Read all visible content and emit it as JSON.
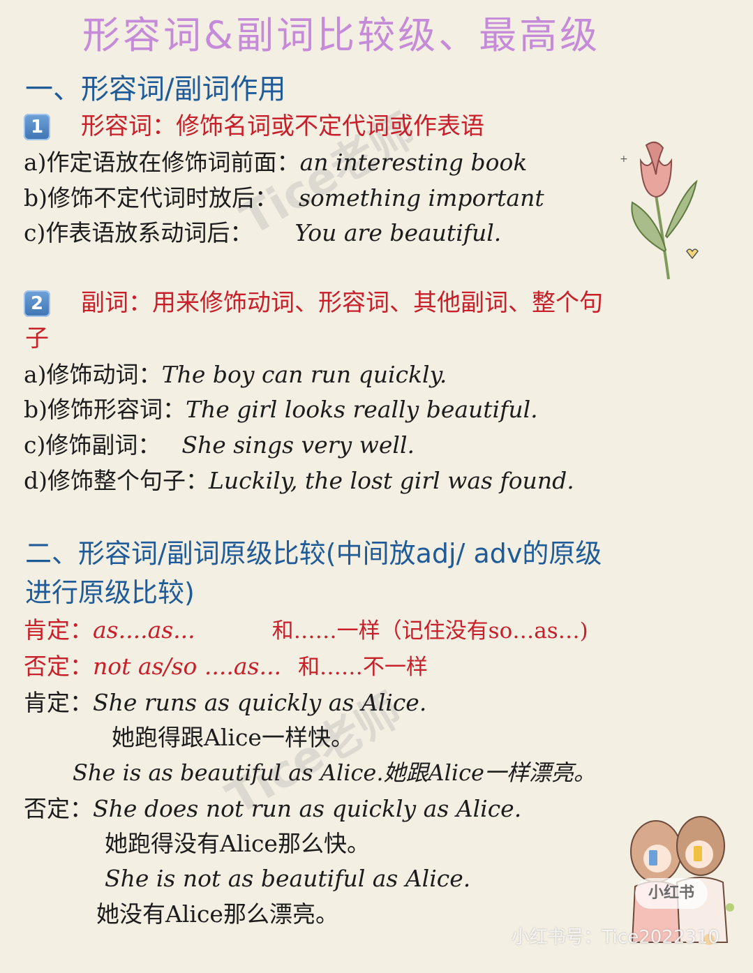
{
  "title": "形容词&副词比较级、最高级",
  "section1": {
    "heading": "一、形容词/副词作用",
    "item1": {
      "badge": "1",
      "heading": "形容词：修饰名词或不定代词或作表语",
      "lines": [
        {
          "cn": "a)作定语放在修饰词前面：",
          "en": "an interesting book"
        },
        {
          "cn": "b)修饰不定代词时放后：",
          "en": "something important"
        },
        {
          "cn": "c)作表语放系动词后：",
          "en": "You are beautiful."
        }
      ]
    },
    "item2": {
      "badge": "2",
      "heading": "副词：用来修饰动词、形容词、其他副词、整个句",
      "heading_cont": "子",
      "lines": [
        {
          "cn": "a)修饰动词：",
          "en": "The boy can run quickly."
        },
        {
          "cn": "b)修饰形容词：",
          "en": "The girl looks really beautiful."
        },
        {
          "cn": "c)修饰副词：",
          "en": "She sings very well."
        },
        {
          "cn": "d)修饰整个句子：",
          "en": "Luckily, the lost girl was found."
        }
      ]
    }
  },
  "section2": {
    "heading": "二、形容词/副词原级比较(中间放adj/ adv的原级",
    "heading_cont": "进行原级比较)",
    "rules": [
      {
        "label": "肯定：",
        "pattern": "as....as...",
        "meaning": "和……一样（记住没有so…as…)"
      },
      {
        "label": "否定：",
        "pattern": "not as/so ....as...",
        "meaning": "和……不一样"
      }
    ],
    "positive": {
      "label": "肯定：",
      "ex1": "She runs as quickly as Alice.",
      "ex1_cn": "她跑得跟Alice一样快。",
      "ex2": "She is as beautiful as Alice.她跟Alice一样漂亮。"
    },
    "negative": {
      "label": "否定：",
      "ex1": "She does not run as quickly as Alice.",
      "ex1_cn": "她跑得没有Alice那么快。",
      "ex2": "She is not as beautiful as Alice.",
      "ex2_cn": "她没有Alice那么漂亮。"
    }
  },
  "watermark": "Tice老师",
  "brand": {
    "logo": "小红书",
    "account": "小红书号：Tice2022310"
  },
  "colors": {
    "title": "#c58ad8",
    "heading": "#1f5a99",
    "accent_red": "#c8202a",
    "background": "#f3efe3"
  }
}
